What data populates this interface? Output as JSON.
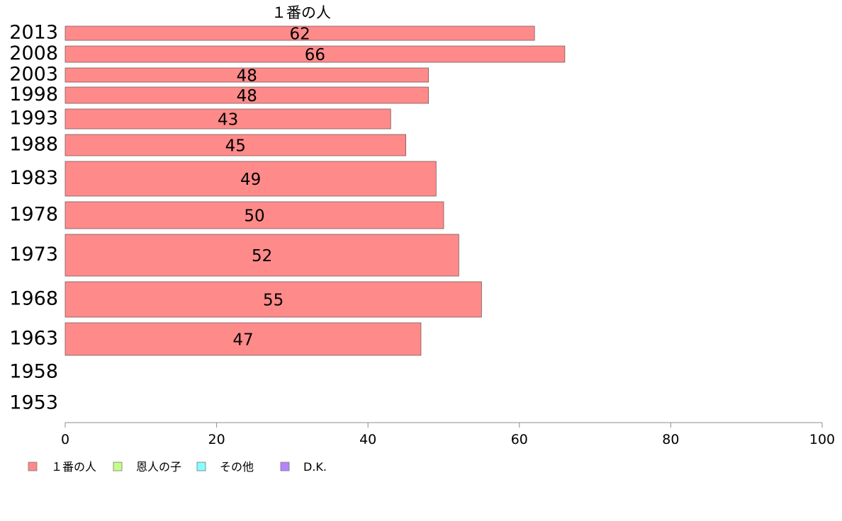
{
  "chart_data": {
    "type": "bar",
    "orientation": "horizontal",
    "title": "",
    "series_header": "１番の人",
    "categories": [
      "2013",
      "2008",
      "2003",
      "1998",
      "1993",
      "1988",
      "1983",
      "1978",
      "1973",
      "1968",
      "1963",
      "1958",
      "1953"
    ],
    "series": [
      {
        "name": "１番の人",
        "color": "#ff8a8a",
        "values": [
          62,
          66,
          48,
          48,
          43,
          45,
          49,
          50,
          52,
          55,
          47,
          null,
          null
        ]
      },
      {
        "name": "恩人の子",
        "color": "#c5ff85",
        "values": [
          null,
          null,
          null,
          null,
          null,
          null,
          null,
          null,
          null,
          null,
          null,
          null,
          null
        ]
      },
      {
        "name": "その他",
        "color": "#85ffff",
        "values": [
          null,
          null,
          null,
          null,
          null,
          null,
          null,
          null,
          null,
          null,
          null,
          null,
          null
        ]
      },
      {
        "name": "D.K.",
        "color": "#b585ff",
        "values": [
          null,
          null,
          null,
          null,
          null,
          null,
          null,
          null,
          null,
          null,
          null,
          null,
          null
        ]
      }
    ],
    "data_labels": [
      "62",
      "66",
      "48",
      "48",
      "43",
      "45",
      "49",
      "50",
      "52",
      "55",
      "47",
      "",
      ""
    ],
    "xlim": [
      0,
      100
    ],
    "xticks": [
      0,
      20,
      40,
      60,
      80,
      100
    ],
    "xlabel": "",
    "ylabel": "",
    "grid": false,
    "legend": "bottom-left"
  }
}
